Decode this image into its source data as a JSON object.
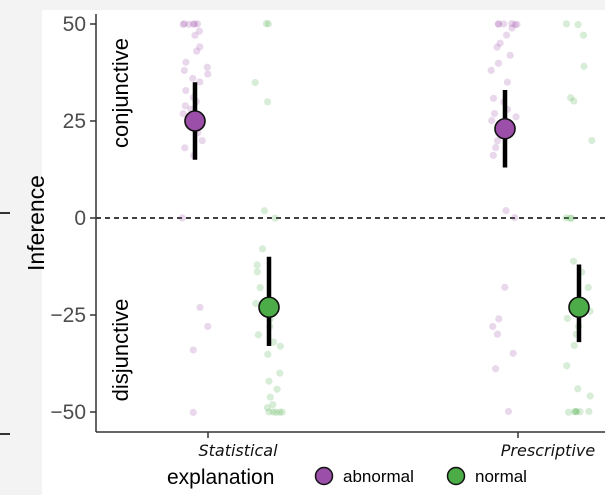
{
  "chart_data": {
    "type": "scatter",
    "ylabel": "Inference",
    "ylim": [
      -54,
      54
    ],
    "yticks": [
      50,
      25,
      0,
      -25,
      -50
    ],
    "categories": [
      "Statistical",
      "Prescriptive"
    ],
    "xlabel_legend_title": "explanation",
    "annotations": {
      "top": "conjunctive",
      "bottom": "disjunctive"
    },
    "reference_line": 0,
    "series": [
      {
        "name": "abnormal",
        "color": "#9b4fa8",
        "means": [
          25,
          23
        ],
        "ci": [
          [
            15,
            35
          ],
          [
            13,
            33
          ]
        ],
        "points": [
          [
            50,
            50,
            50,
            50,
            50,
            50,
            48,
            47,
            44,
            43,
            40,
            39,
            38,
            37,
            36,
            35,
            33,
            31,
            30,
            29,
            28,
            27,
            25,
            24,
            22,
            20,
            18,
            16,
            0,
            -23,
            -28,
            -34,
            -50
          ],
          [
            50,
            50,
            50,
            50,
            50,
            50,
            49,
            47,
            45,
            44,
            42,
            40,
            38,
            35,
            31,
            30,
            28,
            27,
            26,
            25,
            24,
            22,
            20,
            18,
            16,
            2,
            0,
            -18,
            -26,
            -28,
            -30,
            -35,
            -39,
            -50
          ]
        ]
      },
      {
        "name": "normal",
        "color": "#4cac48",
        "means": [
          -23,
          -23
        ],
        "ci": [
          [
            -33,
            -10
          ],
          [
            -32,
            -12
          ]
        ],
        "points": [
          [
            50,
            50,
            35,
            30,
            2,
            0,
            -8,
            -12,
            -14,
            -18,
            -22,
            -24,
            -26,
            -28,
            -30,
            -32,
            -33,
            -35,
            -40,
            -42,
            -44,
            -46,
            -48,
            -49,
            -50,
            -50,
            -50,
            -50,
            -50
          ],
          [
            50,
            50,
            47,
            39,
            31,
            30,
            20,
            0,
            0,
            0,
            -11,
            -14,
            -18,
            -22,
            -24,
            -26,
            -28,
            -30,
            -33,
            -38,
            -44,
            -46,
            -50,
            -50,
            -50,
            -50,
            -50,
            -50
          ]
        ]
      }
    ],
    "legend": {
      "position": "bottom",
      "title": "explanation"
    }
  }
}
